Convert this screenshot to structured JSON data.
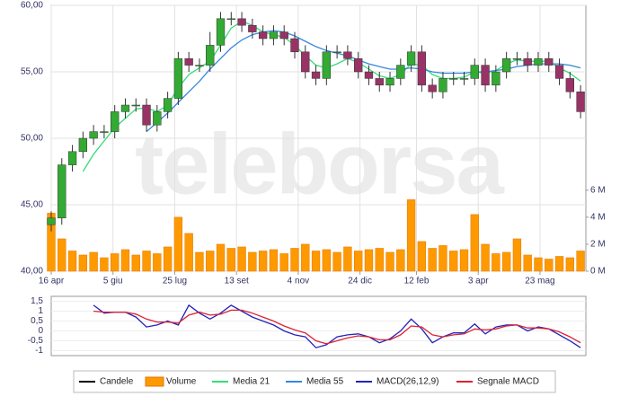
{
  "chart_data": [
    {
      "type": "candlestick",
      "watermark": "teleborsa",
      "x": [
        0,
        6,
        12,
        18,
        24,
        30,
        36,
        42,
        48,
        54,
        60,
        66,
        72,
        78,
        84,
        90,
        96,
        102,
        108,
        114,
        120,
        126,
        132,
        138,
        144,
        150,
        156,
        162,
        168,
        174,
        180,
        186,
        192,
        198,
        204,
        210,
        216,
        222,
        228,
        234,
        240,
        246,
        252,
        258,
        264,
        270,
        276,
        282,
        288,
        294,
        300
      ],
      "xlim": [
        0,
        303
      ],
      "xticks": [
        {
          "value": 0,
          "label": "16 apr"
        },
        {
          "value": 35,
          "label": "5 giu"
        },
        {
          "value": 70,
          "label": "25 lug"
        },
        {
          "value": 105,
          "label": "13 set"
        },
        {
          "value": 140,
          "label": "4 nov"
        },
        {
          "value": 175,
          "label": "24 dic"
        },
        {
          "value": 207,
          "label": "12 feb"
        },
        {
          "value": 242,
          "label": "3 apr"
        },
        {
          "value": 277,
          "label": "23 mag"
        }
      ],
      "ylim": [
        40,
        60
      ],
      "yticks": [
        {
          "value": 40,
          "label": "40,00"
        },
        {
          "value": 45,
          "label": "45,00"
        },
        {
          "value": 50,
          "label": "50,00"
        },
        {
          "value": 55,
          "label": "55,00"
        },
        {
          "value": 60,
          "label": "60,00"
        }
      ],
      "y2lim": [
        0,
        19.7
      ],
      "y2ticks": [
        {
          "value": 0,
          "label": "0 M"
        },
        {
          "value": 2,
          "label": "2 M"
        },
        {
          "value": 4,
          "label": "4 M"
        },
        {
          "value": 6,
          "label": "6 M"
        }
      ],
      "grid": true,
      "series": [
        {
          "name": "Candele",
          "type": "candlestick",
          "color": "#000000",
          "up_color": "#33aa33",
          "down_color": "#993366",
          "open": [
            43.5,
            44,
            48,
            49,
            50,
            50.5,
            50.5,
            52,
            52.5,
            52.5,
            51,
            52,
            53,
            56,
            55.5,
            55.5,
            57,
            59,
            59,
            58.5,
            58,
            57.5,
            58,
            57.5,
            56.5,
            55,
            54.5,
            56.5,
            56.5,
            56,
            55,
            54.5,
            54,
            54.5,
            55.5,
            56.5,
            54,
            53.5,
            54.5,
            54.5,
            54.5,
            55.5,
            54,
            55,
            56,
            56,
            55.5,
            56,
            55.5,
            54.5,
            53.5
          ],
          "high": [
            44.5,
            48.5,
            49.5,
            50.5,
            51,
            51,
            52.5,
            53,
            53,
            53,
            52.5,
            53.5,
            56.5,
            56.5,
            56,
            58,
            59.5,
            59.5,
            59.5,
            59,
            58.5,
            58.5,
            58.5,
            58,
            57,
            55.5,
            57,
            57,
            57,
            56.5,
            55.5,
            55,
            55,
            56,
            57,
            57,
            54.5,
            55,
            55,
            55,
            56,
            56,
            55.5,
            56.5,
            56.5,
            56.5,
            56.5,
            56.5,
            56,
            55,
            54
          ],
          "low": [
            43,
            43.5,
            47.5,
            48.5,
            49.5,
            50,
            50,
            51.5,
            52,
            50.5,
            50.5,
            51.5,
            52.5,
            55,
            55,
            55,
            56.5,
            58.5,
            58,
            57.5,
            57,
            57,
            57,
            56,
            54.5,
            54,
            54,
            56,
            55.5,
            54.5,
            54,
            53.5,
            53.5,
            54,
            55,
            53.5,
            53,
            53,
            54,
            54,
            54,
            53.5,
            53.5,
            54.5,
            55.5,
            55,
            55,
            55,
            54,
            53,
            51.5
          ],
          "close": [
            44,
            48,
            49,
            50,
            50.5,
            50.5,
            52,
            52.5,
            52.5,
            51,
            52,
            53,
            56,
            55.5,
            55.5,
            57,
            59,
            59,
            58.5,
            58,
            57.5,
            58,
            57.5,
            56.5,
            55,
            54.5,
            56.5,
            56.5,
            56,
            55,
            54.5,
            54,
            54.5,
            55.5,
            56.5,
            54,
            53.5,
            54.5,
            54.5,
            54.5,
            55.5,
            54,
            55,
            56,
            56,
            55.5,
            56,
            55.5,
            54.5,
            53.5,
            52
          ]
        },
        {
          "name": "Volume",
          "type": "bar",
          "axis": "y2",
          "color": "#ff9900",
          "values": [
            4.3,
            2.4,
            1.5,
            1.2,
            1.4,
            1.0,
            1.3,
            1.6,
            1.2,
            1.5,
            1.3,
            1.8,
            4.0,
            2.8,
            1.4,
            1.5,
            2.0,
            1.7,
            1.8,
            1.4,
            1.5,
            1.6,
            1.3,
            1.7,
            2.0,
            1.5,
            1.6,
            1.4,
            1.8,
            1.5,
            1.6,
            1.7,
            1.4,
            1.6,
            5.3,
            2.2,
            1.7,
            1.9,
            1.5,
            1.6,
            4.2,
            2.0,
            1.3,
            1.4,
            2.4,
            1.2,
            1.0,
            0.9,
            1.1,
            1.0,
            1.5
          ]
        },
        {
          "name": "Media 21",
          "type": "line",
          "color": "#33dd77",
          "values": [
            null,
            null,
            null,
            47.5,
            48.8,
            49.8,
            50.8,
            51.5,
            52.2,
            52.3,
            52.0,
            52.5,
            53.8,
            54.8,
            55.3,
            55.8,
            57.0,
            58.3,
            58.8,
            58.5,
            58.0,
            57.8,
            57.6,
            57.0,
            56.2,
            55.5,
            55.3,
            55.6,
            56.0,
            55.7,
            55.2,
            54.7,
            54.5,
            54.8,
            55.6,
            55.5,
            54.8,
            54.5,
            54.5,
            54.6,
            55.0,
            54.9,
            55.1,
            55.6,
            55.9,
            55.8,
            55.8,
            55.8,
            55.3,
            54.9,
            54.3
          ]
        },
        {
          "name": "Media 55",
          "type": "line",
          "color": "#3388dd",
          "values": [
            null,
            null,
            null,
            null,
            null,
            null,
            null,
            null,
            null,
            50.5,
            51.2,
            51.9,
            52.7,
            53.5,
            54.3,
            55.2,
            56.0,
            56.8,
            57.4,
            57.8,
            58.0,
            58.1,
            58.0,
            57.7,
            57.3,
            56.9,
            56.6,
            56.4,
            56.2,
            55.9,
            55.6,
            55.4,
            55.2,
            55.2,
            55.3,
            55.2,
            55.0,
            54.9,
            54.9,
            54.9,
            55.0,
            55.0,
            55.1,
            55.2,
            55.4,
            55.5,
            55.6,
            55.6,
            55.6,
            55.5,
            55.3
          ]
        }
      ]
    },
    {
      "type": "line",
      "x": [
        0,
        6,
        12,
        18,
        24,
        30,
        36,
        42,
        48,
        54,
        60,
        66,
        72,
        78,
        84,
        90,
        96,
        102,
        108,
        114,
        120,
        126,
        132,
        138,
        144,
        150,
        156,
        162,
        168,
        174,
        180,
        186,
        192,
        198,
        204,
        210,
        216,
        222,
        228,
        234,
        240,
        246,
        252,
        258,
        264,
        270,
        276,
        282,
        288,
        294,
        300
      ],
      "xlim": [
        0,
        303
      ],
      "ylim": [
        -1.25,
        1.75
      ],
      "yticks": [
        {
          "value": 1.5,
          "label": "1,5"
        },
        1,
        {
          "value": 0.5,
          "label": "0,5"
        },
        0,
        {
          "value": -0.5,
          "label": "-0,5"
        },
        -1
      ],
      "series": [
        {
          "name": "MACD(26,12,9)",
          "type": "line",
          "color": "#2222bb",
          "values": [
            null,
            null,
            null,
            null,
            1.3,
            0.9,
            0.95,
            0.95,
            0.7,
            0.2,
            0.3,
            0.5,
            0.3,
            1.3,
            0.9,
            0.6,
            0.9,
            1.3,
            1.0,
            0.7,
            0.5,
            0.3,
            0.0,
            -0.2,
            -0.3,
            -0.85,
            -0.7,
            -0.3,
            -0.2,
            -0.15,
            -0.3,
            -0.6,
            -0.4,
            0.0,
            0.6,
            0.1,
            -0.6,
            -0.3,
            -0.1,
            -0.1,
            0.35,
            -0.15,
            0.2,
            0.3,
            0.3,
            0.0,
            0.2,
            0.1,
            -0.2,
            -0.5,
            -0.85
          ]
        },
        {
          "name": "Segnale MACD",
          "type": "line",
          "color": "#dd2233",
          "values": [
            null,
            null,
            null,
            null,
            1.0,
            0.95,
            0.95,
            0.95,
            0.85,
            0.6,
            0.45,
            0.45,
            0.4,
            0.8,
            0.95,
            0.8,
            0.85,
            1.05,
            1.05,
            0.9,
            0.7,
            0.5,
            0.25,
            0.05,
            -0.1,
            -0.5,
            -0.65,
            -0.5,
            -0.35,
            -0.25,
            -0.3,
            -0.45,
            -0.45,
            -0.2,
            0.25,
            0.2,
            -0.2,
            -0.3,
            -0.2,
            -0.15,
            0.1,
            0.05,
            0.1,
            0.25,
            0.3,
            0.15,
            0.15,
            0.1,
            -0.05,
            -0.3,
            -0.6
          ]
        }
      ]
    }
  ]
}
